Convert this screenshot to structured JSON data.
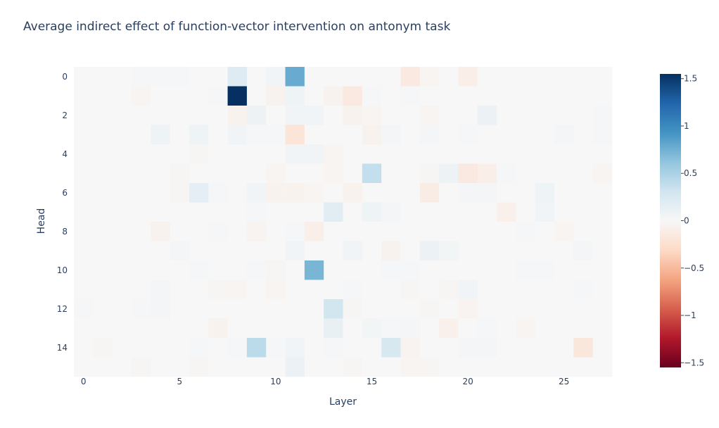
{
  "chart_data": {
    "type": "heatmap",
    "title": "Average indirect effect of function-vector intervention on antonym task",
    "xlabel": "Layer",
    "ylabel": "Head",
    "x_range": [
      0,
      27
    ],
    "y_range": [
      0,
      15
    ],
    "x_ticks": [
      0,
      5,
      10,
      15,
      20,
      25
    ],
    "y_ticks": [
      0,
      2,
      4,
      6,
      8,
      10,
      12,
      14
    ],
    "colorscale": "RdBu",
    "zmin": -1.55,
    "zmax": 1.55,
    "colorbar_ticks": [
      1.5,
      1,
      0.5,
      0,
      -0.5,
      -1,
      -1.5
    ],
    "colorbar_tick_labels": [
      "1.5",
      "1",
      "0.5",
      "0",
      "−0.5",
      "−1",
      "−1.5"
    ],
    "z": [
      [
        0,
        0,
        0,
        0.02,
        0.02,
        0.02,
        0,
        0,
        0.2,
        0,
        0.05,
        0.78,
        0,
        0,
        0,
        0,
        0,
        -0.15,
        -0.03,
        0,
        -0.1,
        0,
        0,
        0,
        0,
        0,
        0,
        0
      ],
      [
        0,
        0,
        0,
        -0.03,
        0,
        0,
        0,
        0.02,
        1.55,
        0,
        -0.06,
        0.07,
        0,
        -0.06,
        -0.15,
        0.02,
        0,
        0.02,
        0,
        0,
        0,
        0,
        0,
        0,
        0,
        0,
        0,
        0
      ],
      [
        0,
        0,
        0,
        0,
        0,
        0,
        0,
        0,
        -0.05,
        0.08,
        0,
        0.05,
        0.05,
        0,
        -0.05,
        -0.03,
        0,
        0,
        -0.03,
        0,
        0,
        0.1,
        0,
        0,
        0,
        0,
        0,
        0.02
      ],
      [
        0,
        0,
        0,
        0,
        0.07,
        0,
        0.07,
        0,
        0.05,
        0.02,
        0.02,
        -0.2,
        0,
        0,
        0,
        -0.05,
        0.03,
        0,
        0.03,
        0,
        0.02,
        0,
        0,
        0,
        0,
        0.03,
        0,
        0.02
      ],
      [
        0,
        0,
        0,
        0,
        0,
        0,
        -0.02,
        0,
        0,
        0,
        0,
        0.05,
        0.05,
        -0.03,
        0,
        0,
        0,
        0,
        0,
        0,
        0,
        0,
        0,
        0,
        0,
        0,
        0,
        0
      ],
      [
        0,
        0,
        0,
        0,
        0,
        -0.02,
        0,
        0,
        0,
        0,
        -0.03,
        0,
        0,
        -0.03,
        0,
        0.38,
        0,
        0,
        -0.02,
        0.08,
        -0.15,
        -0.1,
        0.02,
        0,
        0,
        0,
        0,
        -0.03
      ],
      [
        0,
        0,
        0,
        0,
        0,
        -0.02,
        0.15,
        0.02,
        0,
        0.05,
        -0.05,
        -0.05,
        -0.03,
        0,
        -0.06,
        0,
        0,
        0,
        -0.12,
        0,
        0.03,
        0.03,
        0,
        0,
        0.07,
        0,
        0,
        0
      ],
      [
        0,
        0,
        0,
        0,
        0,
        0,
        0,
        0,
        0,
        0.02,
        0,
        0,
        0,
        0.18,
        0,
        0.07,
        0.03,
        0,
        0,
        0,
        0,
        0,
        -0.08,
        0,
        0.05,
        0,
        0,
        0
      ],
      [
        0,
        0,
        0,
        0,
        -0.05,
        0,
        0,
        0.02,
        0,
        -0.04,
        0,
        0.02,
        -0.1,
        0,
        0,
        0,
        0,
        0,
        0,
        0,
        0,
        0,
        0,
        0.02,
        0,
        -0.03,
        0,
        0
      ],
      [
        0,
        0,
        0,
        0,
        0,
        0.03,
        0,
        0,
        0,
        0,
        0,
        0.05,
        0,
        0,
        0.05,
        0,
        -0.06,
        0,
        0.1,
        0.04,
        0,
        0,
        0,
        0,
        0,
        0,
        0.03,
        0
      ],
      [
        0,
        0,
        0,
        0,
        0,
        0,
        0.02,
        0,
        0,
        0.02,
        -0.02,
        0,
        0.72,
        0,
        0,
        0,
        0.02,
        0.02,
        0,
        0,
        0,
        0,
        0,
        0.02,
        0.02,
        0,
        0,
        0
      ],
      [
        0,
        0,
        0,
        0,
        0.03,
        0,
        0,
        -0.02,
        -0.03,
        0,
        -0.03,
        0,
        0,
        0,
        0.02,
        0,
        0,
        -0.02,
        0,
        -0.02,
        0.05,
        0,
        0,
        0,
        0,
        0,
        0.02,
        0
      ],
      [
        0.02,
        0,
        0,
        0.02,
        0.03,
        0,
        0,
        0,
        0,
        0,
        0,
        0,
        0,
        0.3,
        -0.02,
        0,
        0,
        0,
        -0.02,
        0,
        -0.04,
        0,
        0,
        0,
        0,
        0,
        0,
        0
      ],
      [
        0,
        0,
        0,
        0,
        0,
        0,
        0,
        -0.05,
        0,
        0,
        0,
        0,
        0,
        0.12,
        0,
        0.04,
        0.02,
        0.03,
        0,
        -0.08,
        0,
        0.02,
        0,
        -0.03,
        0,
        0,
        0,
        0
      ],
      [
        0,
        -0.02,
        0,
        0,
        0,
        0,
        0.02,
        0,
        0.02,
        0.42,
        0.02,
        0.05,
        0,
        0.02,
        0,
        0,
        0.25,
        -0.04,
        0,
        0,
        0.03,
        0.03,
        0,
        0,
        0,
        0,
        -0.18,
        0
      ],
      [
        0,
        0,
        0,
        -0.02,
        0,
        0,
        -0.02,
        0,
        0,
        0,
        0,
        0.1,
        0,
        0,
        -0.02,
        0,
        0,
        -0.03,
        -0.02,
        0,
        0,
        0,
        0,
        0,
        0,
        0,
        0,
        0
      ]
    ]
  }
}
